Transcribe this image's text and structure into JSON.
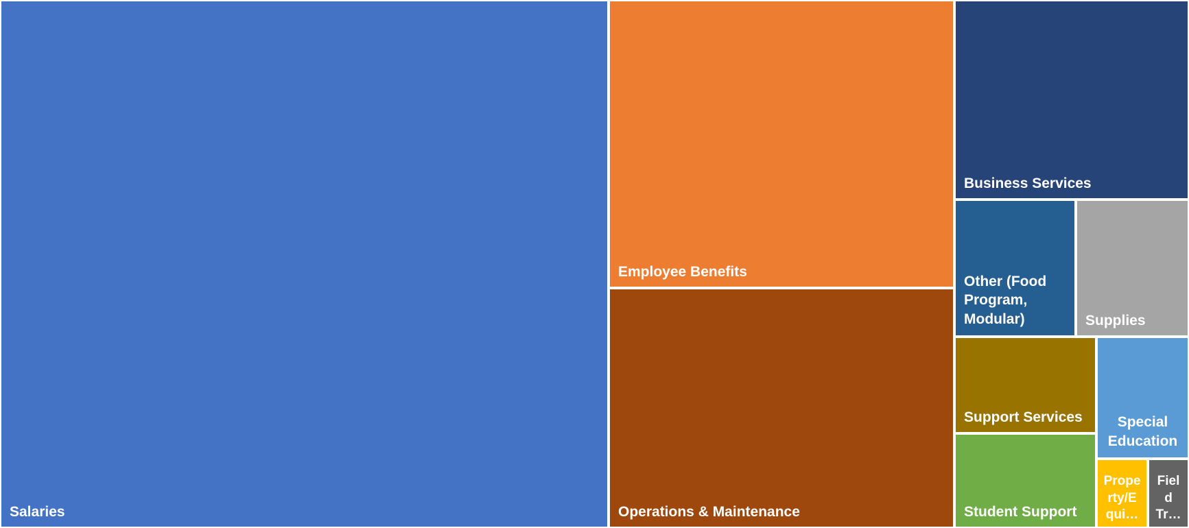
{
  "chart_data": {
    "type": "treemap",
    "items": [
      {
        "name": "Salaries",
        "label": "Salaries",
        "value": 54.5,
        "color": "#4472C4"
      },
      {
        "name": "Employee Benefits",
        "label": "Employee Benefits",
        "value": 14.0,
        "color": "#ED7D31"
      },
      {
        "name": "Operations & Maintenance",
        "label": "Operations & Maintenance",
        "value": 12.7,
        "color": "#9E480E"
      },
      {
        "name": "Business Services",
        "label": "Business Services",
        "value": 5.3,
        "color": "#264478"
      },
      {
        "name": "Other (Food Program, Modular)",
        "label": "Other (Food\nProgram,\nModular)",
        "value": 2.9,
        "color": "#255E91"
      },
      {
        "name": "Supplies",
        "label": "Supplies",
        "value": 2.2,
        "color": "#A5A5A5"
      },
      {
        "name": "Support Services",
        "label": "Support Services",
        "value": 2.5,
        "color": "#997300"
      },
      {
        "name": "Student Support",
        "label": "Student Support",
        "value": 2.2,
        "color": "#70AD47"
      },
      {
        "name": "Special Education",
        "label": "Special\nEducation",
        "value": 2.0,
        "color": "#5B9BD5"
      },
      {
        "name": "Property/Equipment",
        "label": "Prope\nrty/E\nqui…",
        "value": 0.8,
        "color": "#FFC000"
      },
      {
        "name": "Field Trips",
        "label": "Fiel\nd\nTr…",
        "value": 0.9,
        "color": "#636363"
      }
    ]
  }
}
